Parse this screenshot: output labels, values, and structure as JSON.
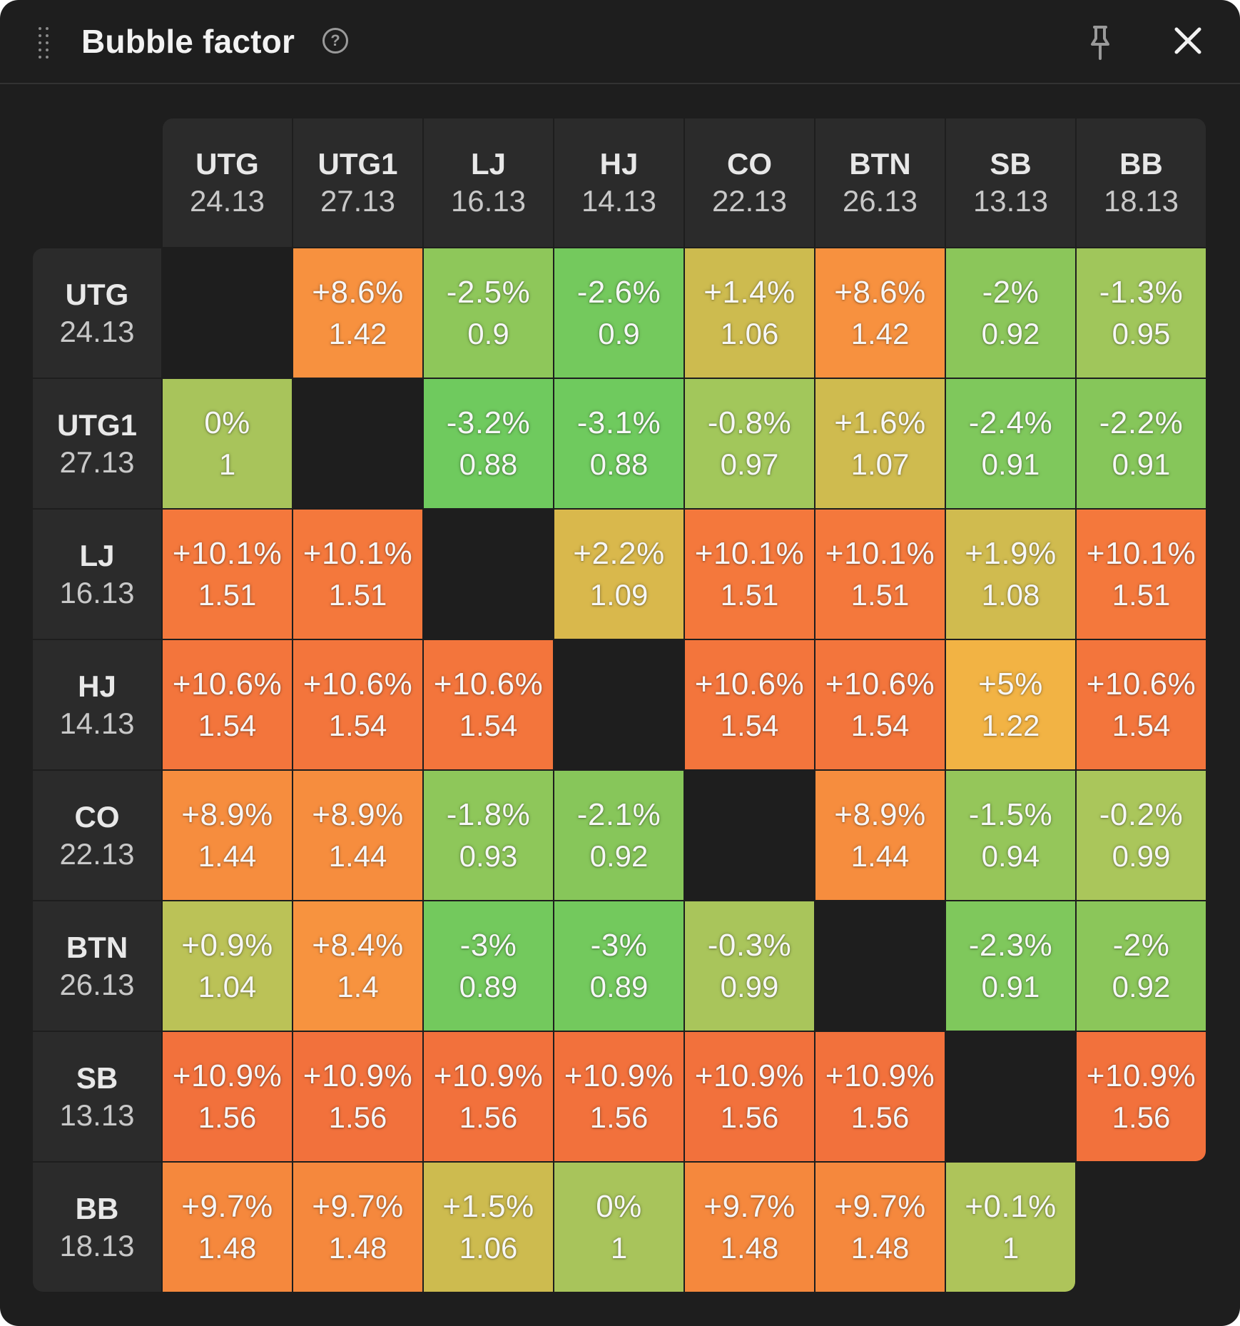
{
  "window": {
    "title": "Bubble factor",
    "icons": [
      "drag-handle-icon",
      "help-icon",
      "pin-icon",
      "close-icon"
    ],
    "help_glyph": "?"
  },
  "colors": {
    "panel_bg": "#1e1e1e",
    "header_bg": "#2b2b2b",
    "scale": [
      "#6fca5e",
      "#8bc65a",
      "#a7c75a",
      "#cdbb4f",
      "#f0b045",
      "#f58b3e",
      "#f2783d",
      "#f06c3c"
    ]
  },
  "positions": [
    {
      "name": "UTG",
      "stack": "24.13"
    },
    {
      "name": "UTG1",
      "stack": "27.13"
    },
    {
      "name": "LJ",
      "stack": "16.13"
    },
    {
      "name": "HJ",
      "stack": "14.13"
    },
    {
      "name": "CO",
      "stack": "22.13"
    },
    {
      "name": "BTN",
      "stack": "26.13"
    },
    {
      "name": "SB",
      "stack": "13.13"
    },
    {
      "name": "BB",
      "stack": "18.13"
    }
  ],
  "matrix": [
    [
      null,
      {
        "pct": "+8.6%",
        "factor": "1.42",
        "color": "#f7913f"
      },
      {
        "pct": "-2.5%",
        "factor": "0.9",
        "color": "#8ec75a"
      },
      {
        "pct": "-2.6%",
        "factor": "0.9",
        "color": "#74c95d"
      },
      {
        "pct": "+1.4%",
        "factor": "1.06",
        "color": "#cdbb4f"
      },
      {
        "pct": "+8.6%",
        "factor": "1.42",
        "color": "#f7913f"
      },
      {
        "pct": "-2%",
        "factor": "0.92",
        "color": "#8bc65a"
      },
      {
        "pct": "-1.3%",
        "factor": "0.95",
        "color": "#a0c65b"
      }
    ],
    [
      {
        "pct": "0%",
        "factor": "1",
        "color": "#a8c45b"
      },
      null,
      {
        "pct": "-3.2%",
        "factor": "0.88",
        "color": "#6fca5e"
      },
      {
        "pct": "-3.1%",
        "factor": "0.88",
        "color": "#6fca5e"
      },
      {
        "pct": "-0.8%",
        "factor": "0.97",
        "color": "#a2c75b"
      },
      {
        "pct": "+1.6%",
        "factor": "1.07",
        "color": "#cfbb4f"
      },
      {
        "pct": "-2.4%",
        "factor": "0.91",
        "color": "#7fc85c"
      },
      {
        "pct": "-2.2%",
        "factor": "0.91",
        "color": "#86c65a"
      }
    ],
    [
      {
        "pct": "+10.1%",
        "factor": "1.51",
        "color": "#f4783c"
      },
      {
        "pct": "+10.1%",
        "factor": "1.51",
        "color": "#f4783c"
      },
      null,
      {
        "pct": "+2.2%",
        "factor": "1.09",
        "color": "#d9b84c"
      },
      {
        "pct": "+10.1%",
        "factor": "1.51",
        "color": "#f4783c"
      },
      {
        "pct": "+10.1%",
        "factor": "1.51",
        "color": "#f4783c"
      },
      {
        "pct": "+1.9%",
        "factor": "1.08",
        "color": "#d0bb4f"
      },
      {
        "pct": "+10.1%",
        "factor": "1.51",
        "color": "#f4783c"
      }
    ],
    [
      {
        "pct": "+10.6%",
        "factor": "1.54",
        "color": "#f3753c"
      },
      {
        "pct": "+10.6%",
        "factor": "1.54",
        "color": "#f3753c"
      },
      {
        "pct": "+10.6%",
        "factor": "1.54",
        "color": "#f3753c"
      },
      null,
      {
        "pct": "+10.6%",
        "factor": "1.54",
        "color": "#f3753c"
      },
      {
        "pct": "+10.6%",
        "factor": "1.54",
        "color": "#f3753c"
      },
      {
        "pct": "+5%",
        "factor": "1.22",
        "color": "#f2b344"
      },
      {
        "pct": "+10.6%",
        "factor": "1.54",
        "color": "#f3753c"
      }
    ],
    [
      {
        "pct": "+8.9%",
        "factor": "1.44",
        "color": "#f68d3e"
      },
      {
        "pct": "+8.9%",
        "factor": "1.44",
        "color": "#f68d3e"
      },
      {
        "pct": "-1.8%",
        "factor": "0.93",
        "color": "#8ec75a"
      },
      {
        "pct": "-2.1%",
        "factor": "0.92",
        "color": "#87c65a"
      },
      null,
      {
        "pct": "+8.9%",
        "factor": "1.44",
        "color": "#f68d3e"
      },
      {
        "pct": "-1.5%",
        "factor": "0.94",
        "color": "#95c65a"
      },
      {
        "pct": "-0.2%",
        "factor": "0.99",
        "color": "#aac65b"
      }
    ],
    [
      {
        "pct": "+0.9%",
        "factor": "1.04",
        "color": "#bbc257"
      },
      {
        "pct": "+8.4%",
        "factor": "1.4",
        "color": "#f7933f"
      },
      {
        "pct": "-3%",
        "factor": "0.89",
        "color": "#73c95d"
      },
      {
        "pct": "-3%",
        "factor": "0.89",
        "color": "#73c95d"
      },
      {
        "pct": "-0.3%",
        "factor": "0.99",
        "color": "#a9c55b"
      },
      null,
      {
        "pct": "-2.3%",
        "factor": "0.91",
        "color": "#7fc85c"
      },
      {
        "pct": "-2%",
        "factor": "0.92",
        "color": "#8bc65a"
      }
    ],
    [
      {
        "pct": "+10.9%",
        "factor": "1.56",
        "color": "#f2713c"
      },
      {
        "pct": "+10.9%",
        "factor": "1.56",
        "color": "#f2713c"
      },
      {
        "pct": "+10.9%",
        "factor": "1.56",
        "color": "#f2713c"
      },
      {
        "pct": "+10.9%",
        "factor": "1.56",
        "color": "#f2713c"
      },
      {
        "pct": "+10.9%",
        "factor": "1.56",
        "color": "#f2713c"
      },
      {
        "pct": "+10.9%",
        "factor": "1.56",
        "color": "#f2713c"
      },
      null,
      {
        "pct": "+10.9%",
        "factor": "1.56",
        "color": "#f2713c"
      }
    ],
    [
      {
        "pct": "+9.7%",
        "factor": "1.48",
        "color": "#f5883d"
      },
      {
        "pct": "+9.7%",
        "factor": "1.48",
        "color": "#f5883d"
      },
      {
        "pct": "+1.5%",
        "factor": "1.06",
        "color": "#cdbb4f"
      },
      {
        "pct": "0%",
        "factor": "1",
        "color": "#a8c45b"
      },
      {
        "pct": "+9.7%",
        "factor": "1.48",
        "color": "#f5883d"
      },
      {
        "pct": "+9.7%",
        "factor": "1.48",
        "color": "#f5883d"
      },
      {
        "pct": "+0.1%",
        "factor": "1",
        "color": "#aec45a"
      },
      null
    ]
  ]
}
